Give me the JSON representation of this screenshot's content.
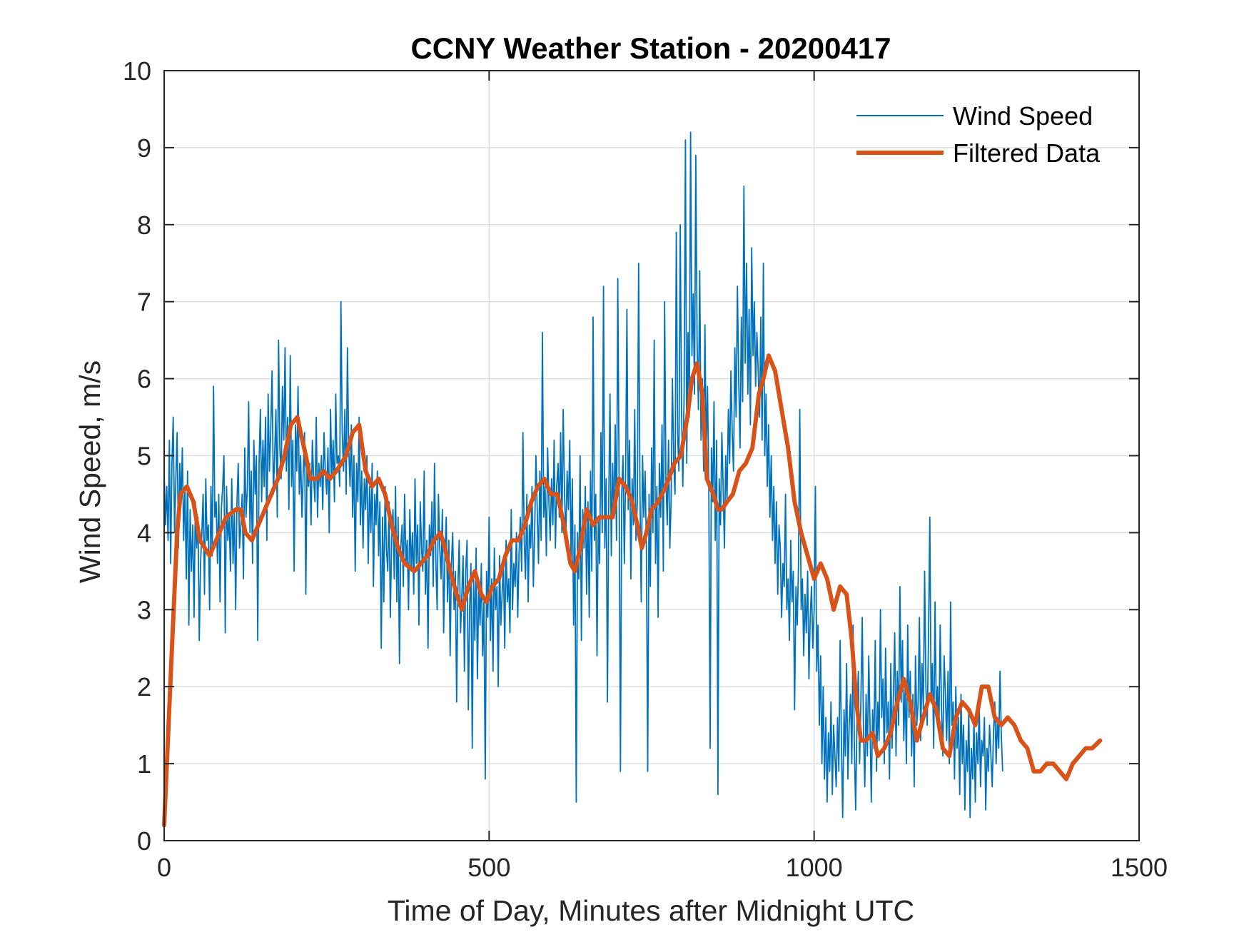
{
  "chart_data": {
    "type": "line",
    "title": "CCNY Weather Station - 20200417",
    "xlabel": "Time of Day, Minutes after Midnight UTC",
    "ylabel": "Wind Speed, m/s",
    "xlim": [
      0,
      1500
    ],
    "ylim": [
      0,
      10
    ],
    "xticks": [
      0,
      500,
      1000,
      1500
    ],
    "yticks": [
      0,
      1,
      2,
      3,
      4,
      5,
      6,
      7,
      8,
      9,
      10
    ],
    "grid": true,
    "legend_position": "top-right",
    "colors": {
      "raw": "#0072BD",
      "filtered": "#D95319",
      "grid": "#dfdfdf",
      "axis": "#262626"
    },
    "series": [
      {
        "name": "Wind Speed",
        "style": "thin",
        "sample_interval_min": 2,
        "values": [
          4.8,
          4.1,
          4.6,
          3.9,
          5.2,
          3.6,
          4.9,
          5.5,
          4.0,
          4.7,
          5.3,
          3.8,
          4.9,
          4.4,
          5.1,
          3.9,
          4.6,
          3.4,
          4.8,
          2.8,
          4.3,
          3.5,
          4.1,
          2.9,
          4.4,
          3.8,
          4.2,
          2.6,
          3.6,
          4.0,
          4.5,
          3.2,
          4.7,
          3.9,
          4.1,
          3.0,
          4.6,
          3.7,
          5.9,
          4.2,
          4.4,
          3.6,
          4.5,
          3.1,
          4.3,
          4.6,
          5.0,
          2.7,
          4.6,
          3.9,
          4.2,
          3.5,
          4.7,
          3.6,
          4.3,
          3.0,
          4.4,
          4.9,
          3.8,
          4.1,
          4.5,
          3.4,
          5.1,
          4.2,
          4.6,
          5.7,
          4.0,
          4.8,
          3.6,
          5.2,
          4.5,
          5.0,
          2.6,
          4.9,
          5.6,
          4.4,
          5.2,
          4.6,
          5.5,
          3.9,
          5.8,
          4.8,
          5.3,
          6.1,
          4.5,
          5.0,
          5.6,
          4.2,
          6.5,
          5.1,
          4.7,
          5.9,
          5.2,
          6.4,
          4.8,
          5.5,
          4.3,
          6.3,
          4.6,
          5.2,
          3.5,
          5.4,
          4.8,
          5.9,
          4.5,
          5.0,
          4.2,
          4.8,
          5.3,
          3.2,
          5.0,
          4.6,
          4.9,
          4.1,
          5.2,
          4.7,
          4.4,
          5.5,
          4.2,
          4.9,
          4.6,
          5.0,
          4.3,
          5.3,
          4.8,
          4.5,
          5.1,
          4.0,
          5.6,
          4.7,
          5.2,
          4.4,
          5.8,
          4.9,
          5.0,
          4.6,
          7.0,
          5.3,
          4.8,
          5.6,
          4.5,
          6.4,
          5.1,
          4.6,
          5.4,
          4.2,
          5.0,
          3.5,
          4.9,
          4.4,
          5.5,
          4.1,
          4.8,
          3.8,
          4.7,
          4.3,
          5.0,
          3.6,
          4.6,
          4.0,
          4.9,
          3.3,
          4.5,
          4.1,
          4.8,
          3.7,
          4.4,
          2.5,
          4.2,
          3.1,
          4.6,
          3.8,
          3.5,
          4.4,
          2.9,
          3.9,
          4.3,
          3.4,
          4.6,
          3.1,
          4.2,
          2.3,
          3.8,
          4.1,
          3.3,
          4.5,
          3.6,
          3.9,
          3.0,
          4.3,
          3.5,
          4.0,
          3.2,
          4.7,
          3.6,
          4.1,
          2.8,
          4.4,
          3.8,
          3.5,
          4.8,
          3.2,
          3.9,
          2.5,
          4.1,
          3.7,
          4.4,
          3.3,
          4.9,
          3.6,
          3.0,
          4.5,
          3.8,
          3.4,
          4.3,
          2.7,
          3.7,
          4.2,
          3.1,
          3.9,
          2.4,
          3.6,
          4.0,
          3.0,
          3.5,
          1.8,
          3.3,
          3.9,
          2.7,
          3.2,
          3.7,
          2.2,
          3.5,
          3.9,
          1.7,
          3.0,
          3.6,
          1.2,
          3.4,
          2.6,
          3.8,
          2.1,
          3.3,
          2.8,
          3.6,
          2.4,
          3.1,
          0.8,
          3.5,
          2.9,
          4.2,
          2.6,
          3.4,
          2.2,
          3.8,
          3.0,
          3.3,
          2.0,
          3.7,
          2.8,
          3.2,
          3.6,
          2.5,
          3.9,
          3.1,
          3.4,
          2.7,
          4.3,
          3.0,
          3.6,
          3.3,
          4.0,
          2.9,
          3.7,
          4.2,
          3.5,
          5.3,
          3.9,
          3.4,
          4.5,
          3.1,
          4.1,
          3.8,
          4.6,
          3.3,
          4.0,
          5.0,
          4.3,
          3.6,
          4.8,
          3.9,
          6.6,
          4.2,
          4.6,
          3.7,
          5.1,
          4.4,
          3.9,
          4.7,
          4.1,
          5.2,
          3.8,
          4.6,
          4.9,
          4.2,
          5.3,
          4.0,
          5.6,
          4.5,
          3.9,
          4.8,
          4.3,
          5.2,
          3.6,
          4.7,
          2.8,
          4.1,
          0.5,
          4.0,
          3.4,
          5.0,
          2.6,
          4.3,
          3.8,
          4.6,
          3.2,
          4.4,
          2.9,
          4.8,
          3.5,
          6.8,
          3.9,
          4.5,
          2.4,
          4.2,
          3.6,
          5.3,
          4.0,
          7.2,
          3.8,
          4.7,
          1.8,
          4.4,
          5.8,
          3.7,
          4.9,
          4.2,
          5.4,
          3.9,
          7.3,
          4.6,
          0.9,
          4.5,
          5.0,
          3.6,
          4.8,
          6.9,
          4.3,
          5.2,
          3.4,
          4.7,
          4.1,
          5.6,
          3.9,
          4.4,
          7.5,
          4.6,
          3.1,
          5.0,
          4.2,
          4.8,
          3.8,
          0.9,
          4.5,
          3.3,
          5.1,
          4.0,
          6.5,
          3.6,
          4.6,
          2.9,
          4.9,
          4.2,
          5.4,
          3.5,
          7.0,
          4.7,
          4.1,
          5.2,
          3.8,
          4.4,
          6.0,
          4.9,
          4.5,
          7.9,
          5.3,
          4.8,
          8.0,
          5.6,
          4.6,
          5.8,
          9.1,
          4.9,
          6.6,
          5.5,
          9.2,
          6.3,
          7.1,
          5.8,
          8.9,
          6.5,
          5.6,
          7.4,
          5.2,
          6.0,
          4.8,
          6.7,
          5.0,
          5.9,
          4.6,
          1.2,
          5.1,
          4.4,
          5.7,
          3.9,
          5.2,
          0.6,
          4.7,
          4.1,
          5.3,
          4.6,
          3.8,
          5.0,
          4.4,
          5.6,
          4.9,
          6.1,
          5.3,
          4.8,
          6.4,
          5.5,
          7.2,
          6.0,
          5.1,
          6.8,
          5.7,
          8.5,
          6.2,
          7.5,
          5.8,
          6.9,
          5.4,
          7.7,
          6.3,
          7.0,
          5.9,
          6.6,
          6.1,
          5.5,
          6.8,
          5.2,
          7.5,
          5.0,
          5.8,
          4.6,
          5.4,
          4.2,
          5.0,
          3.9,
          4.6,
          3.6,
          4.4,
          3.2,
          4.1,
          3.8,
          2.9,
          3.6,
          3.3,
          4.5,
          3.0,
          3.4,
          2.6,
          3.9,
          3.1,
          3.5,
          1.7,
          3.3,
          2.8,
          3.6,
          5.6,
          3.0,
          3.4,
          2.4,
          3.2,
          2.7,
          3.5,
          2.1,
          2.9,
          3.3,
          2.5,
          3.0,
          4.6,
          2.2,
          2.8,
          1.5,
          2.4,
          1.0,
          2.0,
          0.8,
          1.6,
          0.5,
          1.4,
          0.9,
          1.8,
          0.6,
          1.5,
          1.1,
          0.7,
          1.6,
          0.9,
          2.6,
          1.3,
          0.3,
          1.7,
          1.1,
          2.3,
          0.8,
          1.5,
          1.9,
          1.0,
          2.8,
          1.2,
          0.4,
          1.6,
          2.2,
          1.0,
          1.8,
          2.9,
          1.4,
          0.7,
          1.9,
          1.1,
          2.4,
          1.5,
          0.5,
          1.7,
          1.2,
          2.6,
          0.9,
          1.8,
          1.3,
          3.0,
          1.6,
          2.1,
          1.0,
          2.5,
          1.4,
          1.8,
          0.8,
          2.3,
          1.2,
          1.9,
          2.7,
          1.1,
          2.2,
          1.5,
          3.3,
          1.8,
          2.6,
          1.3,
          2.0,
          1.0,
          2.8,
          1.6,
          2.2,
          1.1,
          1.9,
          0.7,
          2.4,
          1.5,
          1.8,
          2.9,
          1.3,
          2.3,
          1.7,
          3.5,
          2.0,
          1.5,
          2.6,
          4.2,
          1.8,
          2.3,
          1.2,
          3.1,
          1.6,
          2.0,
          1.4,
          2.8,
          1.7,
          1.1,
          2.4,
          1.9,
          1.3,
          2.2,
          1.0,
          3.1,
          1.5,
          1.8,
          0.8,
          2.0,
          1.2,
          1.6,
          0.6,
          1.9,
          1.0,
          1.5,
          0.4,
          1.3,
          0.9,
          1.7,
          0.3,
          1.2,
          0.8,
          1.6,
          0.5,
          1.4,
          1.0,
          1.8,
          0.7,
          1.3,
          1.1,
          1.6,
          0.4,
          1.2,
          0.9,
          1.5,
          1.1,
          0.7,
          1.4,
          1.8,
          1.0,
          1.6,
          1.2,
          2.2,
          1.4,
          0.9
        ]
      },
      {
        "name": "Filtered Data",
        "style": "thick",
        "points": [
          [
            0,
            0.2
          ],
          [
            12,
            2.5
          ],
          [
            20,
            4.0
          ],
          [
            25,
            4.5
          ],
          [
            35,
            4.6
          ],
          [
            45,
            4.4
          ],
          [
            55,
            3.9
          ],
          [
            70,
            3.7
          ],
          [
            80,
            3.9
          ],
          [
            95,
            4.2
          ],
          [
            110,
            4.3
          ],
          [
            118,
            4.3
          ],
          [
            125,
            4.0
          ],
          [
            135,
            3.9
          ],
          [
            145,
            4.1
          ],
          [
            160,
            4.4
          ],
          [
            175,
            4.7
          ],
          [
            185,
            5.0
          ],
          [
            195,
            5.4
          ],
          [
            205,
            5.5
          ],
          [
            210,
            5.3
          ],
          [
            218,
            5.0
          ],
          [
            225,
            4.7
          ],
          [
            235,
            4.7
          ],
          [
            245,
            4.8
          ],
          [
            255,
            4.7
          ],
          [
            265,
            4.8
          ],
          [
            280,
            5.0
          ],
          [
            290,
            5.3
          ],
          [
            300,
            5.4
          ],
          [
            310,
            4.8
          ],
          [
            320,
            4.6
          ],
          [
            330,
            4.7
          ],
          [
            340,
            4.5
          ],
          [
            350,
            4.1
          ],
          [
            360,
            3.8
          ],
          [
            370,
            3.6
          ],
          [
            385,
            3.5
          ],
          [
            395,
            3.6
          ],
          [
            405,
            3.7
          ],
          [
            415,
            3.9
          ],
          [
            425,
            4.0
          ],
          [
            432,
            3.8
          ],
          [
            440,
            3.5
          ],
          [
            450,
            3.2
          ],
          [
            458,
            3.0
          ],
          [
            468,
            3.3
          ],
          [
            478,
            3.5
          ],
          [
            488,
            3.2
          ],
          [
            496,
            3.1
          ],
          [
            505,
            3.3
          ],
          [
            515,
            3.4
          ],
          [
            525,
            3.7
          ],
          [
            535,
            3.9
          ],
          [
            545,
            3.9
          ],
          [
            555,
            4.1
          ],
          [
            565,
            4.4
          ],
          [
            575,
            4.6
          ],
          [
            585,
            4.7
          ],
          [
            595,
            4.5
          ],
          [
            605,
            4.5
          ],
          [
            615,
            4.1
          ],
          [
            625,
            3.6
          ],
          [
            632,
            3.5
          ],
          [
            640,
            3.8
          ],
          [
            650,
            4.3
          ],
          [
            660,
            4.1
          ],
          [
            670,
            4.2
          ],
          [
            680,
            4.2
          ],
          [
            690,
            4.2
          ],
          [
            700,
            4.7
          ],
          [
            710,
            4.6
          ],
          [
            720,
            4.4
          ],
          [
            728,
            4.1
          ],
          [
            735,
            3.8
          ],
          [
            742,
            4.0
          ],
          [
            750,
            4.3
          ],
          [
            760,
            4.4
          ],
          [
            772,
            4.6
          ],
          [
            785,
            4.9
          ],
          [
            795,
            5.0
          ],
          [
            805,
            5.5
          ],
          [
            812,
            6.0
          ],
          [
            820,
            6.2
          ],
          [
            828,
            5.8
          ],
          [
            835,
            4.7
          ],
          [
            845,
            4.5
          ],
          [
            852,
            4.3
          ],
          [
            858,
            4.3
          ],
          [
            866,
            4.4
          ],
          [
            875,
            4.5
          ],
          [
            885,
            4.8
          ],
          [
            895,
            4.9
          ],
          [
            905,
            5.1
          ],
          [
            915,
            5.8
          ],
          [
            922,
            6.0
          ],
          [
            930,
            6.3
          ],
          [
            940,
            6.1
          ],
          [
            950,
            5.6
          ],
          [
            960,
            5.1
          ],
          [
            970,
            4.4
          ],
          [
            980,
            4.0
          ],
          [
            990,
            3.7
          ],
          [
            1000,
            3.4
          ],
          [
            1010,
            3.6
          ],
          [
            1020,
            3.4
          ],
          [
            1030,
            3.0
          ],
          [
            1040,
            3.3
          ],
          [
            1050,
            3.2
          ],
          [
            1058,
            2.6
          ],
          [
            1065,
            1.8
          ],
          [
            1072,
            1.3
          ],
          [
            1080,
            1.3
          ],
          [
            1090,
            1.4
          ],
          [
            1098,
            1.1
          ],
          [
            1108,
            1.2
          ],
          [
            1118,
            1.4
          ],
          [
            1128,
            1.8
          ],
          [
            1138,
            2.1
          ],
          [
            1148,
            1.8
          ],
          [
            1158,
            1.3
          ],
          [
            1168,
            1.6
          ],
          [
            1178,
            1.9
          ],
          [
            1188,
            1.7
          ],
          [
            1198,
            1.2
          ],
          [
            1208,
            1.1
          ],
          [
            1218,
            1.6
          ],
          [
            1228,
            1.8
          ],
          [
            1238,
            1.7
          ],
          [
            1248,
            1.5
          ],
          [
            1258,
            2.0
          ],
          [
            1268,
            2.0
          ],
          [
            1278,
            1.6
          ],
          [
            1288,
            1.5
          ],
          [
            1298,
            1.6
          ],
          [
            1308,
            1.5
          ],
          [
            1318,
            1.3
          ],
          [
            1328,
            1.2
          ],
          [
            1338,
            0.9
          ],
          [
            1348,
            0.9
          ],
          [
            1358,
            1.0
          ],
          [
            1368,
            1.0
          ],
          [
            1378,
            0.9
          ],
          [
            1388,
            0.8
          ],
          [
            1398,
            1.0
          ],
          [
            1408,
            1.1
          ],
          [
            1418,
            1.2
          ],
          [
            1428,
            1.2
          ],
          [
            1440,
            1.3
          ]
        ]
      }
    ]
  }
}
